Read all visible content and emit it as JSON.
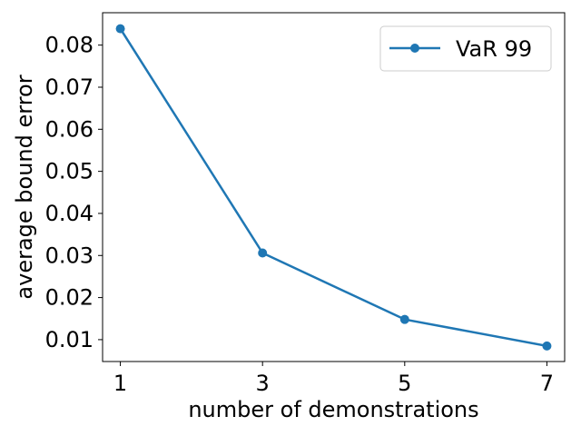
{
  "chart_data": {
    "type": "line",
    "title": "",
    "xlabel": "number of demonstrations",
    "ylabel": "average bound error",
    "x": [
      1,
      3,
      5,
      7
    ],
    "series": [
      {
        "name": "VaR 99",
        "values": [
          0.0839,
          0.0306,
          0.0148,
          0.0085
        ],
        "color": "#1f77b4"
      }
    ],
    "xlim": [
      0.75,
      7.25
    ],
    "ylim": [
      0.0048,
      0.0877
    ],
    "xticks": [
      1,
      3,
      5,
      7
    ],
    "xtick_labels": [
      "1",
      "3",
      "5",
      "7"
    ],
    "yticks": [
      0.01,
      0.02,
      0.03,
      0.04,
      0.05,
      0.06,
      0.07,
      0.08
    ],
    "ytick_labels": [
      "0.01",
      "0.02",
      "0.03",
      "0.04",
      "0.05",
      "0.06",
      "0.07",
      "0.08"
    ],
    "grid": false,
    "legend_position": "top-right",
    "marker": "circle"
  }
}
